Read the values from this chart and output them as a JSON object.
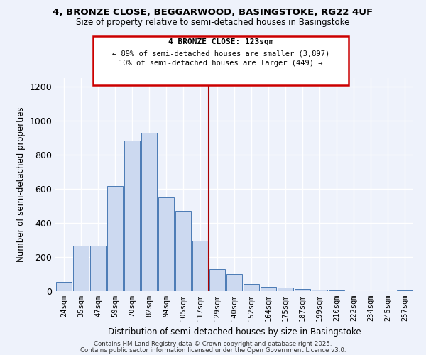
{
  "title1": "4, BRONZE CLOSE, BEGGARWOOD, BASINGSTOKE, RG22 4UF",
  "title2": "Size of property relative to semi-detached houses in Basingstoke",
  "xlabel": "Distribution of semi-detached houses by size in Basingstoke",
  "ylabel": "Number of semi-detached properties",
  "bar_labels": [
    "24sqm",
    "35sqm",
    "47sqm",
    "59sqm",
    "70sqm",
    "82sqm",
    "94sqm",
    "105sqm",
    "117sqm",
    "129sqm",
    "140sqm",
    "152sqm",
    "164sqm",
    "175sqm",
    "187sqm",
    "199sqm",
    "210sqm",
    "222sqm",
    "234sqm",
    "245sqm",
    "257sqm"
  ],
  "bar_values": [
    55,
    265,
    265,
    615,
    885,
    930,
    550,
    470,
    295,
    130,
    100,
    40,
    27,
    20,
    13,
    7,
    3,
    2,
    1,
    1,
    5
  ],
  "bar_color": "#ccd9f0",
  "bar_edge_color": "#4a7ab5",
  "vline_color": "#aa0000",
  "annotation_box_title": "4 BRONZE CLOSE: 123sqm",
  "annotation_line1": "← 89% of semi-detached houses are smaller (3,897)",
  "annotation_line2": "10% of semi-detached houses are larger (449) →",
  "annotation_box_color": "#cc0000",
  "ylim": [
    0,
    1250
  ],
  "yticks": [
    0,
    200,
    400,
    600,
    800,
    1000,
    1200
  ],
  "footer1": "Contains HM Land Registry data © Crown copyright and database right 2025.",
  "footer2": "Contains public sector information licensed under the Open Government Licence v3.0.",
  "bg_color": "#eef2fb",
  "grid_color": "#ffffff"
}
